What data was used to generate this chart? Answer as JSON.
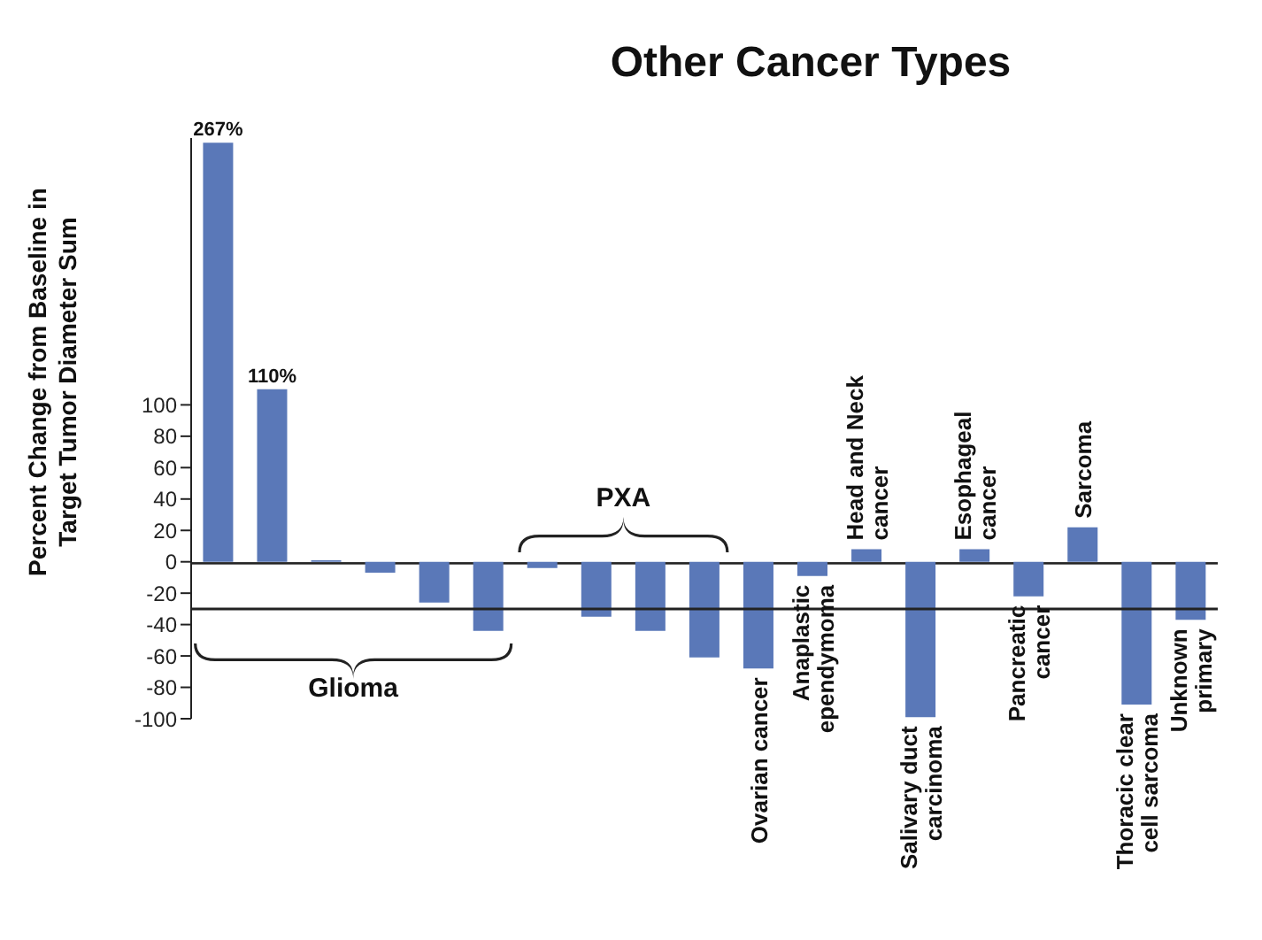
{
  "chart_data": {
    "type": "bar",
    "title": "Other Cancer Types",
    "ylabel": "Percent Change from Baseline in Target Tumor Diameter Sum",
    "categories": [
      null,
      null,
      null,
      null,
      null,
      null,
      null,
      null,
      null,
      null,
      "Ovarian cancer",
      "Anaplastic ependymoma",
      "Head and Neck cancer",
      "Salivary duct carcinoma",
      "Esophageal cancer",
      "Pancreatic cancer",
      "Sarcoma",
      "Thoracic clear cell sarcoma",
      "Unknown primary"
    ],
    "values": [
      267,
      110,
      1,
      -7,
      -26,
      -44,
      -4,
      -35,
      -44,
      -61,
      -68,
      -9,
      8,
      -99,
      8,
      -22,
      22,
      -91,
      -37
    ],
    "value_labels": [
      "267%",
      "110%",
      null,
      null,
      null,
      null,
      null,
      null,
      null,
      null,
      null,
      null,
      null,
      null,
      null,
      null,
      null,
      null,
      null
    ],
    "color": "#5a78b8",
    "ylim": [
      -100,
      270
    ],
    "yticks": [
      -100,
      -80,
      -60,
      -40,
      -20,
      0,
      20,
      40,
      60,
      80,
      100
    ],
    "ref_lines": [
      {
        "axis": "y",
        "value": -30,
        "color": "#222222"
      }
    ],
    "annotations": [
      "Glioma",
      "PXA"
    ],
    "grid": false
  }
}
